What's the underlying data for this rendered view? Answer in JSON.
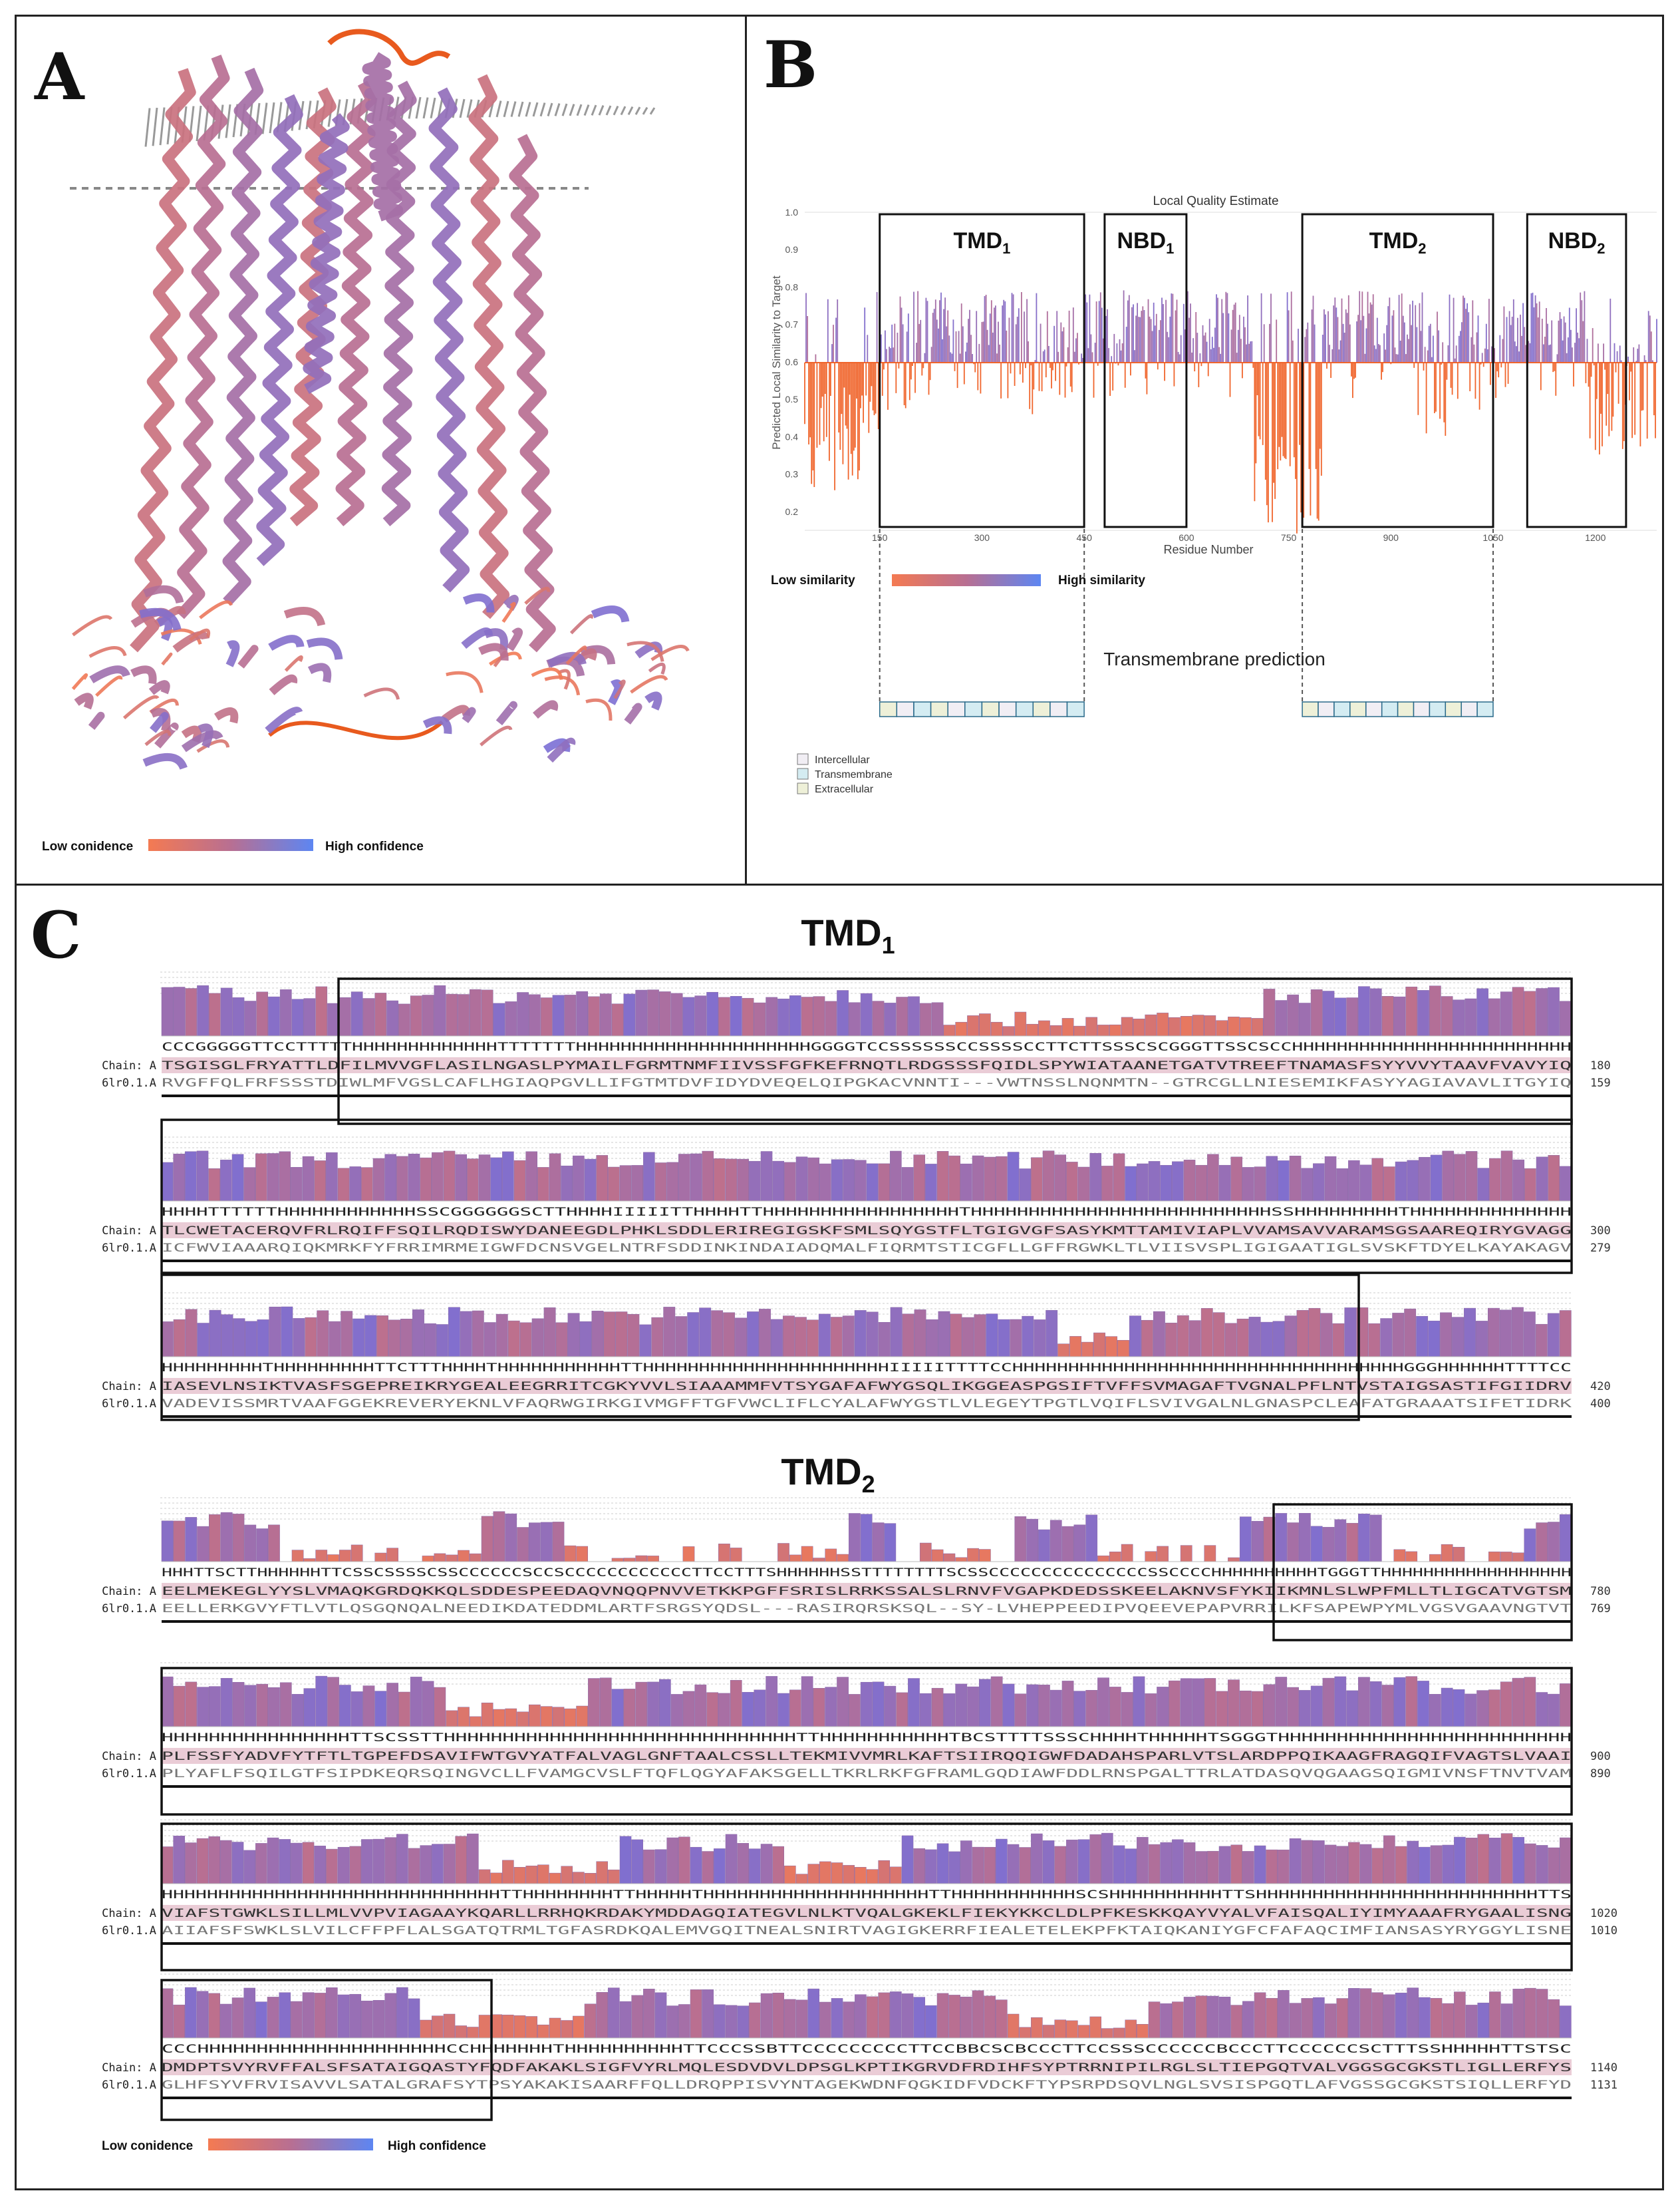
{
  "panels": {
    "A": {
      "label": "A",
      "legend": {
        "low": "Low conidence",
        "high": "High confidence"
      }
    },
    "B": {
      "label": "B",
      "chart_title": "Local Quality Estimate",
      "ylabel": "Predicted Local Similarity to Target",
      "xlabel": "Residue Number",
      "yticks": [
        "0.2",
        "0.3",
        "0.4",
        "0.5",
        "0.6",
        "0.7",
        "0.8",
        "0.9",
        "1.0"
      ],
      "xticks": [
        "150",
        "300",
        "450",
        "600",
        "750",
        "900",
        "1050",
        "1200"
      ],
      "domains": [
        {
          "main": "TMD",
          "sub": "1"
        },
        {
          "main": "NBD",
          "sub": "1"
        },
        {
          "main": "TMD",
          "sub": "2"
        },
        {
          "main": "NBD",
          "sub": "2"
        }
      ],
      "similarity_legend": {
        "low": "Low similarity",
        "high": "High similarity"
      },
      "tm_title": "Transmembrane prediction",
      "tm_legend": [
        "Intercellular",
        "Transmembrane",
        "Extracellular"
      ]
    },
    "C": {
      "label": "C",
      "tmd1_title": {
        "main": "TMD",
        "sub": "1"
      },
      "tmd2_title": {
        "main": "TMD",
        "sub": "2"
      },
      "legend": {
        "low": "Low conidence",
        "high": "High confidence"
      },
      "blocks": [
        {
          "ss": "CCCGGGGGTTCCTTTTTHHHHHHHHHHHHHTTTTTTTHHHHHHHHHHHHHHHHHHHHHGGGGTCCSSSSSSCCSSSSCCTTCTTSSSCSCGGGTTSSCSCCHHHHHHHHHHHHHHHHHHHHHHHHH",
          "chain_label": "Chain: A",
          "chain": "TSGISGLFRYATTLDFILMVVGFLASILNGASLPYMAILFGRMTNMFIIVSSFGFKEFRNQTLRDGSSSFQIDLSPYWIATAANETGATVTREEFTNAMASFSYYVVYTAAVFVAVYIQ",
          "chain_num": "180",
          "templ_label": "6lr0.1.A",
          "templ": "RVGFFQLFRFSSSTDIWLMFVGSLCAFLHGIAQPGVLLIFGTMTDVFIDYDVEQELQIPGKACVNNTI---VWTNSSLNQNMTN--GTRCGLLNIESEMIKFASYYAGIAVAVLITGYIQ",
          "templ_num": "159"
        },
        {
          "ss": "HHHHTTTTTTHHHHHHHHHHHHSSCGGGGGGSCTTHHHHIIIIITTHHHHTTHHHHHHHHHHHHHHHHHTHHHHHHHHHHHHHHHHHHHHHHHHHHSSHHHHHHHHHTHHHHHHHHHHHHHH",
          "chain_label": "Chain: A",
          "chain": "TLCWETACERQVFRLRQIFFSQILRQDISWYDANEEGDLPHKLSDDLERIREGIGSKFSMLSQYGSTFLTGIGVGFSASYKMTTAMIVIAPLVVAMSAVVARAMSGSAAREQIRYGVAGG",
          "chain_num": "300",
          "templ_label": "6lr0.1.A",
          "templ": "ICFWVIAAARQIQKMRKFYFRRIMRMEIGWFDCNSVGELNTRFSDDINKINDAIADQMALFIQRMTSTICGFLLGFFRGWKLTLVIISVSPLIGIGAATIGLSVSKFTDYELKAYAKAGV",
          "templ_num": "279"
        },
        {
          "ss": "HHHHHHHHHTHHHHHHHHHTTCTTTHHHHTHHHHHHHHHHHTTHHHHHHHHHHHHHHHHHHHHHHIIIIITTTTCCHHHHHHHHHHHHHHHHHHHHHHHHHHHHHHHHHHHGGGHHHHHHTTTTCC",
          "chain_label": "Chain: A",
          "chain": "IASEVLNSIKTVASFSGEPREIKRYGEALEEGRRITCGKYVVLSIAAAMMFVTSYGAFAFWYGSQLIKGGEASPGSIFTVFFSVMAGAFTVGNALPFLNTVSTAIGSASTIFGIIDRV",
          "chain_num": "420",
          "templ_label": "6lr0.1.A",
          "templ": "VADEVISSMRTVAAFGGEKREVERYEKNLVFAQRWGIRKGIVMGFFTGFVWCLIFLCYALAFWYGSTLVLEGEYTPGTLVQIFLSVIVGALNLGNASPCLEAFATGRAAATSIFETIDRK",
          "templ_num": "400"
        },
        {
          "ss": "HHHTTSCTTHHHHHHTTCSSCSSSSCSSCCCCCCSCCSCCCCCCCCCCCCTTCCTTTSHHHHHHSSTTTTTTTTSCSSCCCCCCCCCCCCCCCSSCCCCHHHHHHHHHHTGGGTTHHHHHHHHHHHHHHHHHH",
          "chain_label": "Chain: A",
          "chain": "EELMEKEGLYYSLVMAQKGRDQKKQLSDDESPEEDAQVNQQPNVVETKKPGFFSRISLRRKSSALSLRNVFVGAPKDEDSSKEELAKNVSFYKIIKMNLSLWPFMLLTLIGCATVGTSM",
          "chain_num": "780",
          "templ_label": "6lr0.1.A",
          "templ": "EELLERKGVYFTLVTLQSGQNQALNEEDIKDATEDDMLARTFSRGSYQDSL---RASIRQRSKSQL--SY-LVHEPPEEDIPVQEEVEPAPVRRILKFSAPEWPYMLVGSVGAAVNGTVT",
          "templ_num": "769"
        },
        {
          "ss": "HHHHHHHHHHHHHHHHTTSCSSTTHHHHHHHHHHHHHHHHHHHHHHHHHHHHHHTTHHHHHHHHHHHTBCSTTTTSSSCHHHHTHHHHHTSGGGTHHHHHHHHHHHHHHHHHHHHHHHHH",
          "chain_label": "Chain: A",
          "chain": "PLFSSFYADVFYTFTLTGPEFDSAVIFWTGVYATFALVAGLGNFTAALCSSLLTEKMIVVMRLKAFTSIIRQQIGWFDADAHSPARLVTSLARDPPQIKAAGFRAGQIFVAGTSLVAAI",
          "chain_num": "900",
          "templ_label": "6lr0.1.A",
          "templ": "PLYAFLFSQILGTFSIPDKEQRSQINGVCLLFVAMGCVSLFTQFLQGYAFAKSGELLTKRLRKFGFRAMLGQDIAWFDDLRNSPGALTTRLATDASQVQGAAGSQIGMIVNSFTNVTVAM",
          "templ_num": "890"
        },
        {
          "ss": "HHHHHHHHHHHHHHHHHHHHHHHHHHHHHHTTHHHHHHHHTTHHHHHTHHHHHHHHHHHHHHHHHHHHTTHHHHHHHHHHHSCSHHHHHHHHHHTTSHHHHHHHHHHHHHHHHHHHHHHHHHTTS",
          "chain_label": "Chain: A",
          "chain": "VIAFSTGWKLSILLMLVVPVIAGAAYKQARLLRRHQKRDAKYMDDAGQIATEGVLNLKTVQALGKEKLFIEKYKKCLDLPFKESKKQAYVYALVFAISQALIYIMYAAAFRYGAALISNG",
          "chain_num": "1020",
          "templ_label": "6lr0.1.A",
          "templ": "AIIAFSFSWKLSLVILCFFPFLALSGATQTRMLTGFASRDKQALEMVGQITNEALSNIRTVAGIGKERRFIEALETELEKPFKTAIQKANIYGFCFAFAQCIMFIANSASYRYGGYLISNE",
          "templ_num": "1010"
        },
        {
          "ss": "CCCHHHHHHHHHHHHHHHHHHHHHCCHHHHHHHTHHHHHHHHHHTTCCCSSBTTCCCCCCCCCTTCCBBCSCBCCCTTCCSSSCCCCCCBCCCTTCCCCCCSCTTTSSHHHHHTTSTSC",
          "chain_label": "Chain: A",
          "chain": "DMDPTSVYRVFFALSFSATAIGQASTYFQDFAKAKLSIGFVYRLMQLESDVDVLDPSGLKPTIKGRVDFRDIHFSYPTRRNIPILRGLSLTIEPGQTVALVGGSGCGKSTLIGLLERFYS",
          "chain_num": "1140",
          "templ_label": "6lr0.1.A",
          "templ": "GLHFSYVFRVISAVVLSATALGRAFSYTPSYAKAKISAARFFQLLDRQPPISVYNTAGEKWDNFQGKIDFVDCKFTYPSRPDSQVLNGLSVSISPGQTLAFVGSSGCGKSTSIQLLERFYD",
          "templ_num": "1131"
        }
      ]
    }
  }
}
